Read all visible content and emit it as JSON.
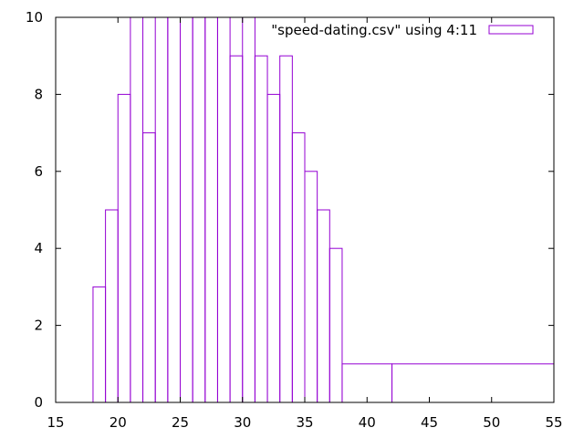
{
  "chart_data": {
    "type": "bar",
    "legend": {
      "label": "\"speed-dating.csv\" using 4:11",
      "placement": "top-right"
    },
    "xlim": [
      15,
      55
    ],
    "ylim": [
      0,
      10
    ],
    "x_ticks": [
      15,
      20,
      25,
      30,
      35,
      40,
      45,
      50,
      55
    ],
    "y_ticks": [
      0,
      2,
      4,
      6,
      8,
      10
    ],
    "grid": false,
    "series": [
      {
        "style": "boxes",
        "color": "#9400d3",
        "points": [
          {
            "x": 18,
            "y": 3
          },
          {
            "x": 19,
            "y": 5
          },
          {
            "x": 20,
            "y": 8
          },
          {
            "x": 21,
            "y": 10
          },
          {
            "x": 22,
            "y": 7
          },
          {
            "x": 23,
            "y": 10
          },
          {
            "x": 24,
            "y": 10
          },
          {
            "x": 25,
            "y": 10
          },
          {
            "x": 26,
            "y": 10
          },
          {
            "x": 27,
            "y": 10
          },
          {
            "x": 28,
            "y": 10
          },
          {
            "x": 29,
            "y": 9
          },
          {
            "x": 30,
            "y": 10
          },
          {
            "x": 31,
            "y": 9
          },
          {
            "x": 32,
            "y": 8
          },
          {
            "x": 33,
            "y": 9
          },
          {
            "x": 34,
            "y": 7
          },
          {
            "x": 35,
            "y": 6
          },
          {
            "x": 36,
            "y": 5
          },
          {
            "x": 37,
            "y": 4
          },
          {
            "x": 38,
            "y": 1
          },
          {
            "x": 42,
            "y": 1
          }
        ]
      }
    ]
  }
}
